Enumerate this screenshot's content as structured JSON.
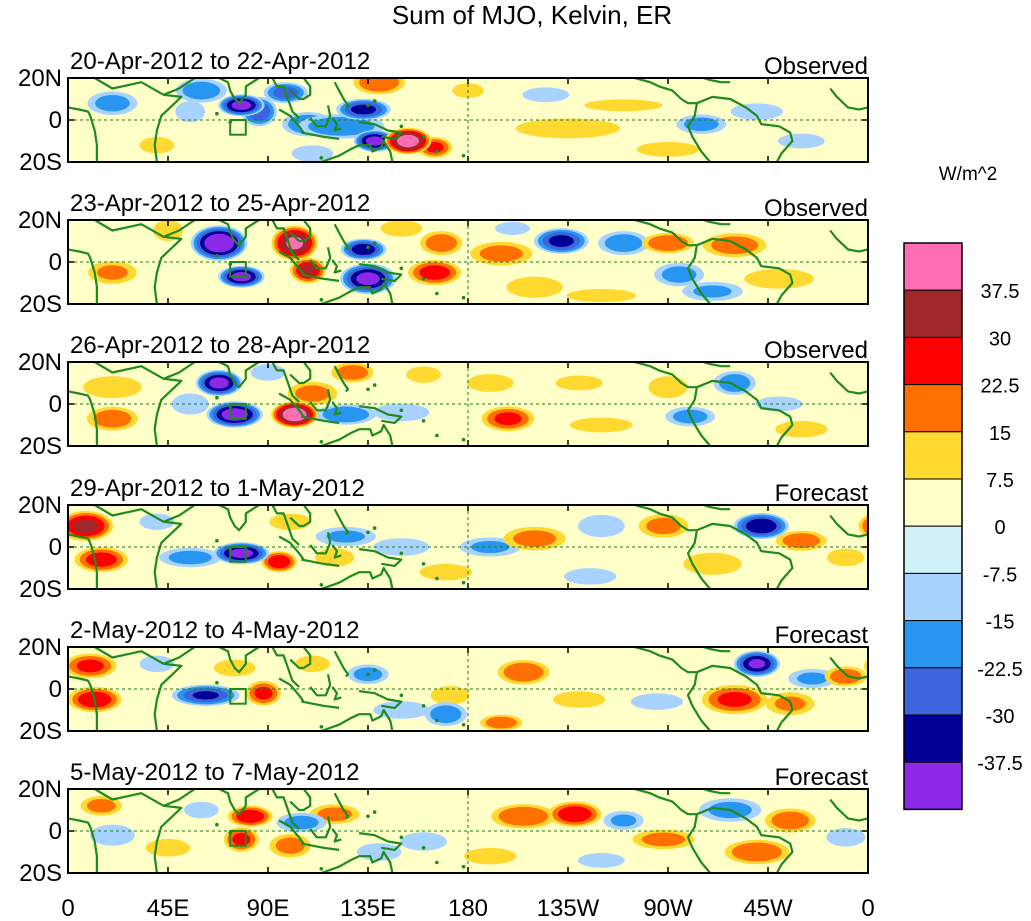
{
  "chart_data": {
    "type": "heatmap",
    "title": "Sum of MJO, Kelvin, ER",
    "units": "W/m^2",
    "panels": [
      {
        "date_range": "20-Apr-2012 to 22-Apr-2012",
        "kind": "Observed"
      },
      {
        "date_range": "23-Apr-2012 to 25-Apr-2012",
        "kind": "Observed"
      },
      {
        "date_range": "26-Apr-2012 to 28-Apr-2012",
        "kind": "Observed"
      },
      {
        "date_range": "29-Apr-2012 to 1-May-2012",
        "kind": "Forecast"
      },
      {
        "date_range": "2-May-2012 to 4-May-2012",
        "kind": "Forecast"
      },
      {
        "date_range": "5-May-2012 to 7-May-2012",
        "kind": "Forecast"
      }
    ],
    "x_ticks": [
      "0",
      "45E",
      "90E",
      "135E",
      "180",
      "135W",
      "90W",
      "45W",
      "0"
    ],
    "y_ticks": [
      "20N",
      "0",
      "20S"
    ],
    "colorbar": {
      "labels": [
        "37.5",
        "30",
        "22.5",
        "15",
        "7.5",
        "0",
        "-7.5",
        "-15",
        "-22.5",
        "-30",
        "-37.5"
      ],
      "colors": [
        "#ff6eb4",
        "#a0282a",
        "#ff0000",
        "#ff7000",
        "#ffd830",
        "#ffffc8",
        "#d2f2fa",
        "#a8d2ff",
        "#2896f0",
        "#3c64dc",
        "#000096",
        "#8c28e6"
      ]
    },
    "anomalies": [
      [
        [
          60,
          14,
          12,
          6,
          -20
        ],
        [
          78,
          7,
          10,
          5,
          -40
        ],
        [
          98,
          13,
          10,
          5,
          -26
        ],
        [
          108,
          -2,
          12,
          6,
          -22
        ],
        [
          123,
          -3,
          20,
          6,
          -22
        ],
        [
          138,
          -10,
          9,
          5,
          -40
        ],
        [
          153,
          -10,
          10,
          6,
          42
        ],
        [
          165,
          -13,
          8,
          5,
          24
        ],
        [
          133,
          5,
          12,
          5,
          -32
        ],
        [
          20,
          8,
          12,
          6,
          -18
        ],
        [
          140,
          18,
          12,
          6,
          22
        ],
        [
          86,
          4,
          8,
          7,
          -28
        ],
        [
          225,
          -4,
          30,
          6,
          10
        ],
        [
          215,
          12,
          15,
          5,
          -8
        ],
        [
          285,
          -2,
          12,
          5,
          -18
        ],
        [
          310,
          4,
          15,
          5,
          -10
        ],
        [
          55,
          4,
          8,
          6,
          -12
        ],
        [
          250,
          7,
          25,
          4,
          8
        ],
        [
          180,
          14,
          10,
          5,
          8
        ],
        [
          270,
          -14,
          20,
          5,
          8
        ],
        [
          110,
          -16,
          12,
          5,
          -10
        ],
        [
          40,
          -12,
          10,
          5,
          10
        ],
        [
          330,
          -10,
          15,
          5,
          -8
        ]
      ],
      [
        [
          68,
          9,
          12,
          8,
          -45
        ],
        [
          78,
          -7,
          10,
          5,
          -40
        ],
        [
          102,
          9,
          10,
          8,
          38
        ],
        [
          108,
          -4,
          8,
          6,
          30
        ],
        [
          133,
          6,
          10,
          5,
          -34
        ],
        [
          135,
          -8,
          12,
          7,
          -40
        ],
        [
          168,
          9,
          10,
          6,
          20
        ],
        [
          165,
          -5,
          12,
          6,
          26
        ],
        [
          195,
          4,
          15,
          6,
          18
        ],
        [
          210,
          -12,
          15,
          6,
          12
        ],
        [
          222,
          10,
          12,
          6,
          -32
        ],
        [
          250,
          9,
          12,
          6,
          -20
        ],
        [
          270,
          9,
          12,
          5,
          22
        ],
        [
          300,
          8,
          15,
          6,
          20
        ],
        [
          275,
          -6,
          12,
          6,
          -18
        ],
        [
          20,
          -5,
          12,
          6,
          16
        ],
        [
          200,
          16,
          10,
          4,
          -10
        ],
        [
          150,
          16,
          12,
          5,
          10
        ],
        [
          45,
          15,
          8,
          6,
          12
        ],
        [
          320,
          -8,
          20,
          6,
          10
        ],
        [
          290,
          -14,
          15,
          5,
          -16
        ],
        [
          240,
          -16,
          20,
          4,
          10
        ]
      ],
      [
        [
          68,
          10,
          10,
          6,
          -40
        ],
        [
          75,
          -5,
          12,
          6,
          -42
        ],
        [
          102,
          -5,
          10,
          6,
          44
        ],
        [
          110,
          5,
          12,
          6,
          18
        ],
        [
          128,
          15,
          10,
          5,
          20
        ],
        [
          125,
          -5,
          14,
          5,
          -22
        ],
        [
          198,
          -7,
          12,
          6,
          24
        ],
        [
          190,
          10,
          15,
          6,
          8
        ],
        [
          270,
          8,
          10,
          6,
          14
        ],
        [
          280,
          -6,
          12,
          5,
          -18
        ],
        [
          300,
          10,
          10,
          6,
          -20
        ],
        [
          20,
          8,
          15,
          6,
          14
        ],
        [
          20,
          -7,
          12,
          6,
          20
        ],
        [
          150,
          -4,
          15,
          5,
          -12
        ],
        [
          55,
          0,
          10,
          6,
          -12
        ],
        [
          240,
          -10,
          20,
          5,
          8
        ],
        [
          320,
          0,
          15,
          5,
          -8
        ],
        [
          330,
          -12,
          15,
          5,
          10
        ],
        [
          230,
          10,
          15,
          5,
          8
        ],
        [
          160,
          14,
          10,
          5,
          10
        ],
        [
          90,
          15,
          10,
          5,
          -10
        ]
      ],
      [
        [
          8,
          10,
          12,
          7,
          32
        ],
        [
          15,
          -6,
          12,
          6,
          26
        ],
        [
          78,
          -3,
          12,
          5,
          -40
        ],
        [
          95,
          -7,
          8,
          5,
          28
        ],
        [
          55,
          -5,
          15,
          5,
          -18
        ],
        [
          125,
          5,
          15,
          5,
          -16
        ],
        [
          120,
          -5,
          10,
          5,
          14
        ],
        [
          150,
          0,
          15,
          5,
          -12
        ],
        [
          190,
          0,
          15,
          5,
          -16
        ],
        [
          210,
          4,
          15,
          6,
          18
        ],
        [
          240,
          10,
          12,
          6,
          -14
        ],
        [
          268,
          10,
          12,
          6,
          18
        ],
        [
          312,
          10,
          12,
          6,
          -36
        ],
        [
          290,
          -8,
          15,
          6,
          14
        ],
        [
          330,
          3,
          12,
          5,
          20
        ],
        [
          40,
          12,
          10,
          5,
          -10
        ],
        [
          100,
          12,
          12,
          5,
          10
        ],
        [
          170,
          -12,
          15,
          5,
          10
        ],
        [
          235,
          -14,
          15,
          5,
          -10
        ],
        [
          350,
          -5,
          10,
          5,
          12
        ]
      ],
      [
        [
          10,
          11,
          12,
          6,
          24
        ],
        [
          12,
          -5,
          12,
          6,
          28
        ],
        [
          62,
          -3,
          15,
          5,
          -30
        ],
        [
          88,
          -2,
          8,
          6,
          24
        ],
        [
          135,
          7,
          10,
          5,
          -18
        ],
        [
          170,
          -12,
          10,
          6,
          -20
        ],
        [
          172,
          -3,
          10,
          5,
          14
        ],
        [
          205,
          8,
          12,
          6,
          22
        ],
        [
          310,
          12,
          10,
          6,
          -38
        ],
        [
          300,
          -5,
          15,
          7,
          24
        ],
        [
          325,
          -7,
          12,
          6,
          16
        ],
        [
          335,
          5,
          12,
          5,
          -16
        ],
        [
          350,
          6,
          10,
          5,
          20
        ],
        [
          265,
          -6,
          15,
          5,
          -10
        ],
        [
          230,
          -5,
          15,
          5,
          10
        ],
        [
          150,
          -10,
          15,
          5,
          -12
        ],
        [
          110,
          12,
          10,
          5,
          10
        ],
        [
          40,
          12,
          10,
          5,
          -10
        ],
        [
          75,
          10,
          12,
          5,
          10
        ],
        [
          195,
          -16,
          10,
          4,
          20
        ]
      ],
      [
        [
          82,
          7,
          10,
          5,
          28
        ],
        [
          78,
          -4,
          8,
          6,
          24
        ],
        [
          100,
          -7,
          10,
          6,
          18
        ],
        [
          120,
          8,
          12,
          5,
          18
        ],
        [
          105,
          4,
          12,
          5,
          -18
        ],
        [
          160,
          -5,
          12,
          5,
          -14
        ],
        [
          205,
          7,
          15,
          6,
          22
        ],
        [
          228,
          8,
          12,
          6,
          28
        ],
        [
          250,
          5,
          10,
          5,
          -16
        ],
        [
          268,
          -4,
          15,
          5,
          18
        ],
        [
          298,
          10,
          15,
          6,
          -18
        ],
        [
          310,
          -10,
          15,
          6,
          22
        ],
        [
          325,
          5,
          12,
          6,
          20
        ],
        [
          350,
          -3,
          10,
          5,
          -14
        ],
        [
          20,
          -2,
          12,
          6,
          -12
        ],
        [
          15,
          12,
          10,
          5,
          18
        ],
        [
          45,
          -8,
          12,
          5,
          12
        ],
        [
          140,
          -10,
          12,
          5,
          -12
        ],
        [
          190,
          -12,
          15,
          5,
          10
        ],
        [
          240,
          -14,
          15,
          5,
          -8
        ],
        [
          60,
          10,
          10,
          5,
          -10
        ]
      ]
    ]
  }
}
